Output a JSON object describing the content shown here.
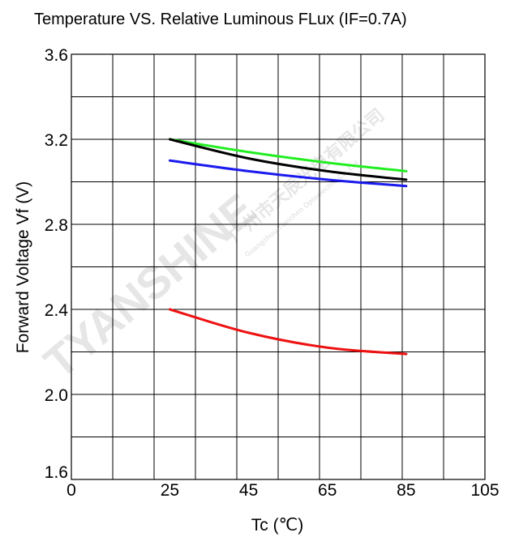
{
  "chart_data": {
    "type": "line",
    "title": "Temperature VS.  Relative Luminous FLux (IF=0.7A)",
    "xlabel": "Tc (℃)",
    "ylabel": "Forward  Voltage  Vf  (V)",
    "xlim": [
      0,
      105
    ],
    "ylim": [
      1.6,
      3.6
    ],
    "x_ticks": [
      "0",
      "25",
      "45",
      "65",
      "85",
      "105"
    ],
    "y_ticks": [
      "1.6",
      "2.0",
      "2.4",
      "2.8",
      "3.2",
      "3.6"
    ],
    "grid": true,
    "legend": "none",
    "series": [
      {
        "color": "#22ee22",
        "x": [
          25,
          45,
          65,
          85
        ],
        "y": [
          3.2,
          3.14,
          3.09,
          3.05
        ]
      },
      {
        "color": "#000000",
        "x": [
          25,
          45,
          65,
          85
        ],
        "y": [
          3.2,
          3.11,
          3.05,
          3.01
        ]
      },
      {
        "color": "#1a1aee",
        "x": [
          25,
          45,
          65,
          85
        ],
        "y": [
          3.1,
          3.05,
          3.01,
          2.98
        ]
      },
      {
        "color": "#ee1111",
        "x": [
          25,
          45,
          65,
          85
        ],
        "y": [
          2.4,
          2.29,
          2.22,
          2.19
        ]
      }
    ]
  },
  "watermark": {
    "brand": "TYANSHINE",
    "company": "广州市天辰光电有限公司",
    "company_en": "Guangzhou Tianchen Optoelectric Co.,Ltd"
  }
}
